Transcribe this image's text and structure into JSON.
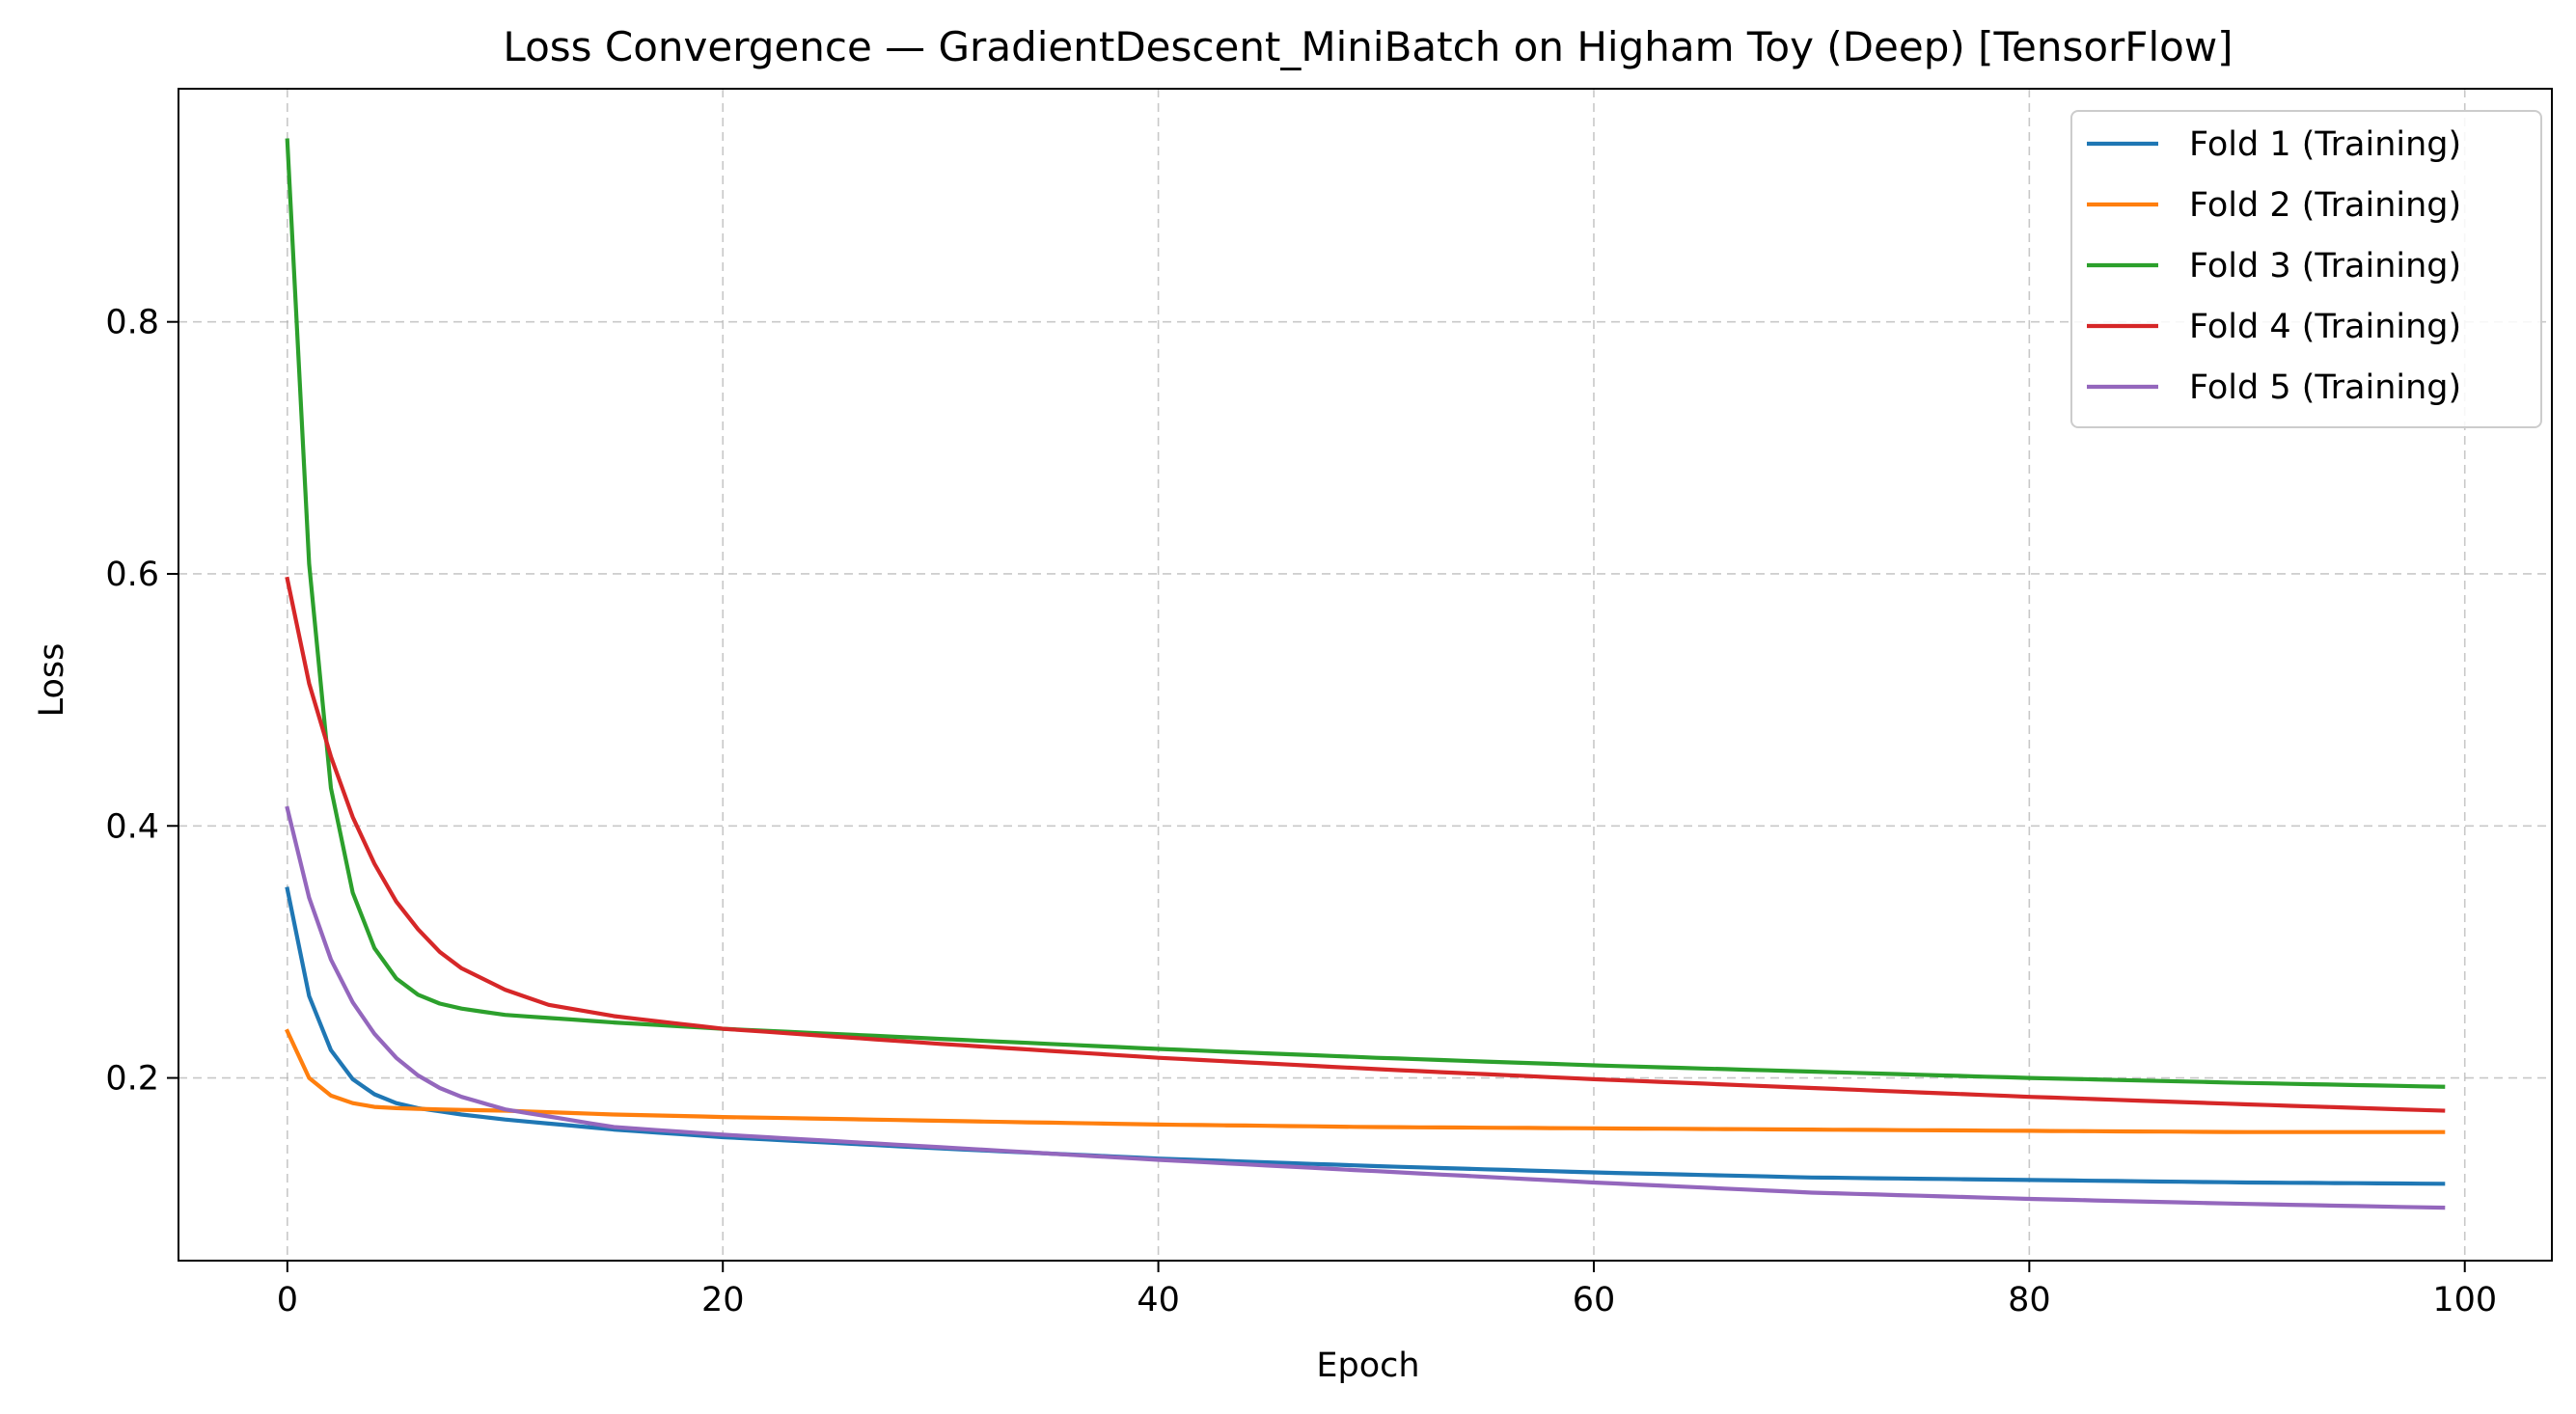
{
  "chart_data": {
    "type": "line",
    "title": "Loss Convergence — GradientDescent_MiniBatch on Higham Toy (Deep) [TensorFlow]",
    "xlabel": "Epoch",
    "ylabel": "Loss",
    "xlim": [
      -5,
      104
    ],
    "ylim": [
      0.055,
      0.985
    ],
    "xticks": [
      0,
      20,
      40,
      60,
      80,
      100
    ],
    "xtick_labels": [
      "0",
      "20",
      "40",
      "60",
      "80",
      "100"
    ],
    "yticks": [
      0.2,
      0.4,
      0.6,
      0.8
    ],
    "ytick_labels": [
      "0.2",
      "0.4",
      "0.6",
      "0.8"
    ],
    "grid": true,
    "legend_position": "top-right",
    "epochs": 100,
    "series": [
      {
        "name": "Fold 1 (Training)",
        "color": "#1f77b4",
        "points": [
          [
            0,
            0.35
          ],
          [
            1,
            0.265
          ],
          [
            2,
            0.222
          ],
          [
            3,
            0.199
          ],
          [
            4,
            0.187
          ],
          [
            5,
            0.18
          ],
          [
            6,
            0.176
          ],
          [
            8,
            0.171
          ],
          [
            10,
            0.167
          ],
          [
            15,
            0.159
          ],
          [
            20,
            0.153
          ],
          [
            30,
            0.144
          ],
          [
            40,
            0.136
          ],
          [
            50,
            0.13
          ],
          [
            60,
            0.125
          ],
          [
            70,
            0.121
          ],
          [
            80,
            0.119
          ],
          [
            90,
            0.117
          ],
          [
            99,
            0.116
          ]
        ]
      },
      {
        "name": "Fold 2 (Training)",
        "color": "#ff7f0e",
        "points": [
          [
            0,
            0.237
          ],
          [
            1,
            0.2
          ],
          [
            2,
            0.186
          ],
          [
            3,
            0.18
          ],
          [
            4,
            0.177
          ],
          [
            5,
            0.176
          ],
          [
            7,
            0.175
          ],
          [
            10,
            0.174
          ],
          [
            15,
            0.171
          ],
          [
            20,
            0.169
          ],
          [
            30,
            0.166
          ],
          [
            40,
            0.163
          ],
          [
            50,
            0.161
          ],
          [
            60,
            0.16
          ],
          [
            70,
            0.159
          ],
          [
            80,
            0.158
          ],
          [
            90,
            0.157
          ],
          [
            99,
            0.157
          ]
        ]
      },
      {
        "name": "Fold 3 (Training)",
        "color": "#2ca02c",
        "points": [
          [
            0,
            0.944
          ],
          [
            1,
            0.608
          ],
          [
            2,
            0.43
          ],
          [
            3,
            0.347
          ],
          [
            4,
            0.303
          ],
          [
            5,
            0.279
          ],
          [
            6,
            0.266
          ],
          [
            7,
            0.259
          ],
          [
            8,
            0.255
          ],
          [
            10,
            0.25
          ],
          [
            15,
            0.244
          ],
          [
            20,
            0.239
          ],
          [
            30,
            0.231
          ],
          [
            40,
            0.223
          ],
          [
            50,
            0.216
          ],
          [
            60,
            0.21
          ],
          [
            70,
            0.205
          ],
          [
            80,
            0.2
          ],
          [
            90,
            0.196
          ],
          [
            99,
            0.193
          ]
        ]
      },
      {
        "name": "Fold 4 (Training)",
        "color": "#d62728",
        "points": [
          [
            0,
            0.596
          ],
          [
            1,
            0.513
          ],
          [
            2,
            0.455
          ],
          [
            3,
            0.407
          ],
          [
            4,
            0.37
          ],
          [
            5,
            0.34
          ],
          [
            6,
            0.318
          ],
          [
            7,
            0.3
          ],
          [
            8,
            0.287
          ],
          [
            10,
            0.27
          ],
          [
            12,
            0.258
          ],
          [
            15,
            0.249
          ],
          [
            20,
            0.239
          ],
          [
            30,
            0.227
          ],
          [
            40,
            0.216
          ],
          [
            50,
            0.207
          ],
          [
            60,
            0.199
          ],
          [
            70,
            0.192
          ],
          [
            80,
            0.185
          ],
          [
            90,
            0.179
          ],
          [
            99,
            0.174
          ]
        ]
      },
      {
        "name": "Fold 5 (Training)",
        "color": "#9467bd",
        "points": [
          [
            0,
            0.414
          ],
          [
            1,
            0.343
          ],
          [
            2,
            0.294
          ],
          [
            3,
            0.26
          ],
          [
            4,
            0.235
          ],
          [
            5,
            0.216
          ],
          [
            6,
            0.202
          ],
          [
            7,
            0.192
          ],
          [
            8,
            0.185
          ],
          [
            10,
            0.175
          ],
          [
            15,
            0.161
          ],
          [
            20,
            0.155
          ],
          [
            30,
            0.145
          ],
          [
            40,
            0.135
          ],
          [
            50,
            0.126
          ],
          [
            60,
            0.117
          ],
          [
            70,
            0.109
          ],
          [
            80,
            0.104
          ],
          [
            90,
            0.1
          ],
          [
            99,
            0.097
          ]
        ]
      }
    ]
  }
}
